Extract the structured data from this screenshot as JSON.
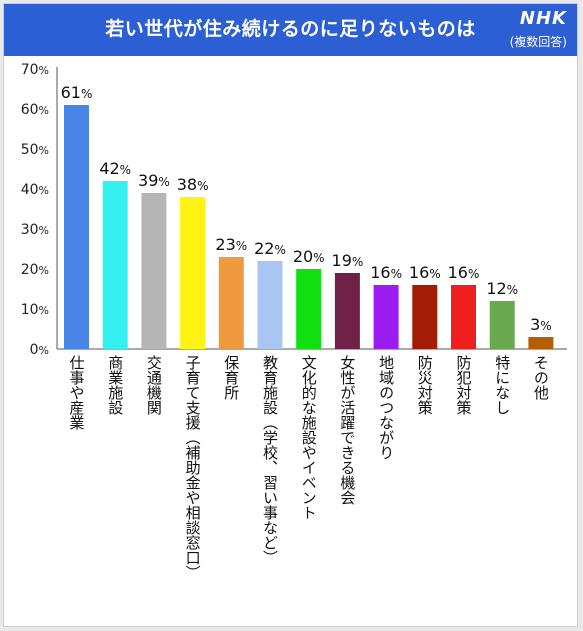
{
  "header": {
    "title": "若い世代が住み続けるのに足りないものは",
    "logo": "NHK",
    "note": "(複数回答)"
  },
  "colors": {
    "header_bg": "#2c5fd3"
  },
  "chart_data": {
    "type": "bar",
    "title": "若い世代が住み続けるのに足りないものは",
    "subtitle": "(複数回答)",
    "unit": "%",
    "ylim": [
      0,
      70
    ],
    "yticks": [
      0,
      10,
      20,
      30,
      40,
      50,
      60,
      70
    ],
    "grid": false,
    "categories": [
      "仕事や産業",
      "商業施設",
      "交通機関",
      "子育て支援（補助金や相談窓口）",
      "保育所",
      "教育施設（学校、習い事など）",
      "文化的な施設やイベント",
      "女性が活躍できる機会",
      "地域のつながり",
      "防災対策",
      "防犯対策",
      "特になし",
      "その他"
    ],
    "values": [
      61,
      42,
      39,
      38,
      23,
      22,
      20,
      19,
      16,
      16,
      16,
      12,
      3
    ],
    "colors": [
      "#4a86e8",
      "#35f0f0",
      "#b5b5b5",
      "#fff314",
      "#ee9b3e",
      "#a9c6f2",
      "#10e010",
      "#702147",
      "#9b1cf0",
      "#a31c05",
      "#f01f1f",
      "#6aa84f",
      "#b45f06"
    ]
  }
}
